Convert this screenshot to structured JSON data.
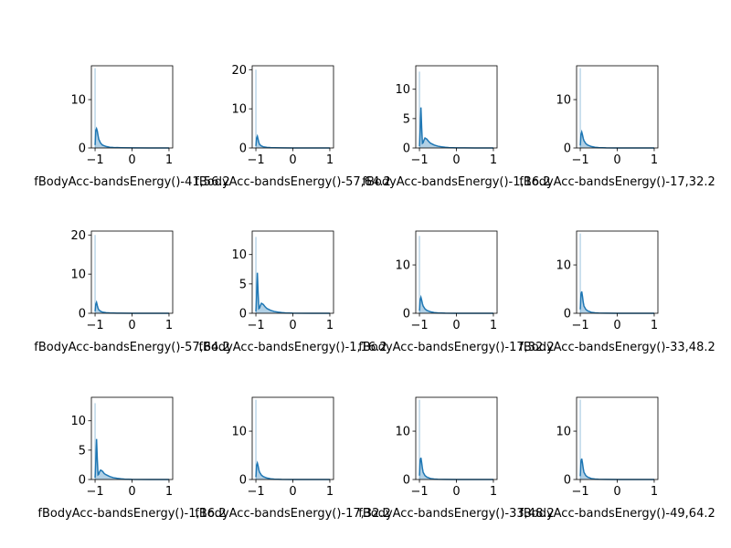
{
  "colors": {
    "line": "#1f77b4",
    "fill": "#1f77b4",
    "axis": "#000000",
    "background": "#ffffff"
  },
  "chart_data": [
    {
      "type": "area",
      "xlabel": "fBodyAcc-bandsEnergy()-41,56.2",
      "xlim": [
        -1.1,
        1.1
      ],
      "ylim": [
        0,
        17
      ],
      "yticks": [
        0,
        10
      ],
      "xticks": [
        -1,
        0,
        1
      ],
      "x": [
        -1,
        -0.98,
        -0.96,
        -0.94,
        -0.92,
        -0.9,
        -0.85,
        -0.8,
        -0.7,
        -0.6,
        -0.5,
        -0.3,
        0,
        0.5,
        1
      ],
      "y": [
        0.6,
        3.6,
        4.0,
        3.5,
        2.6,
        1.8,
        1.0,
        0.6,
        0.3,
        0.15,
        0.1,
        0.05,
        0.02,
        0.01,
        0
      ],
      "spike": {
        "x": -1,
        "y": 16.5
      }
    },
    {
      "type": "area",
      "xlabel": "fBodyAcc-bandsEnergy()-57,64.2",
      "xlim": [
        -1.1,
        1.1
      ],
      "ylim": [
        0,
        21
      ],
      "yticks": [
        0,
        10,
        20
      ],
      "xticks": [
        -1,
        0,
        1
      ],
      "x": [
        -1,
        -0.98,
        -0.96,
        -0.94,
        -0.92,
        -0.9,
        -0.85,
        -0.8,
        -0.7,
        -0.6,
        -0.5,
        -0.3,
        0,
        0.5,
        1
      ],
      "y": [
        0.5,
        2.5,
        3.0,
        2.2,
        1.4,
        0.9,
        0.5,
        0.3,
        0.15,
        0.08,
        0.05,
        0.02,
        0.01,
        0,
        0
      ],
      "spike": {
        "x": -1,
        "y": 20.0
      }
    },
    {
      "type": "area",
      "xlabel": "fBodyAcc-bandsEnergy()-1,16.2",
      "xlim": [
        -1.1,
        1.1
      ],
      "ylim": [
        0,
        14
      ],
      "yticks": [
        0,
        5,
        10
      ],
      "xticks": [
        -1,
        0,
        1
      ],
      "x": [
        -1,
        -0.98,
        -0.96,
        -0.94,
        -0.92,
        -0.9,
        -0.88,
        -0.85,
        -0.8,
        -0.75,
        -0.7,
        -0.6,
        -0.5,
        -0.4,
        -0.3,
        -0.2,
        0,
        0.5,
        1
      ],
      "y": [
        0.3,
        3.0,
        6.9,
        3.5,
        0.8,
        0.9,
        1.3,
        1.7,
        1.5,
        1.1,
        0.8,
        0.5,
        0.3,
        0.2,
        0.12,
        0.06,
        0.02,
        0,
        0
      ],
      "spike": {
        "x": -1,
        "y": 13.0
      }
    },
    {
      "type": "area",
      "xlabel": "fBodyAcc-bandsEnergy()-17,32.2",
      "xlim": [
        -1.1,
        1.1
      ],
      "ylim": [
        0,
        17
      ],
      "yticks": [
        0,
        10
      ],
      "xticks": [
        -1,
        0,
        1
      ],
      "x": [
        -1,
        -0.98,
        -0.96,
        -0.94,
        -0.92,
        -0.9,
        -0.85,
        -0.8,
        -0.7,
        -0.6,
        -0.5,
        -0.3,
        0,
        0.5,
        1
      ],
      "y": [
        0.5,
        2.8,
        3.3,
        2.7,
        2.0,
        1.5,
        0.9,
        0.6,
        0.3,
        0.15,
        0.08,
        0.03,
        0.01,
        0,
        0
      ],
      "spike": {
        "x": -1,
        "y": 16.5
      }
    },
    {
      "type": "area",
      "xlabel": "fBodyAcc-bandsEnergy()-57,64.2",
      "xlim": [
        -1.1,
        1.1
      ],
      "ylim": [
        0,
        21
      ],
      "yticks": [
        0,
        10,
        20
      ],
      "xticks": [
        -1,
        0,
        1
      ],
      "x": [
        -1,
        -0.98,
        -0.96,
        -0.94,
        -0.92,
        -0.9,
        -0.85,
        -0.8,
        -0.7,
        -0.6,
        -0.5,
        -0.3,
        0,
        0.5,
        1
      ],
      "y": [
        0.5,
        2.3,
        2.8,
        2.0,
        1.3,
        0.9,
        0.5,
        0.3,
        0.15,
        0.08,
        0.05,
        0.02,
        0.01,
        0,
        0
      ],
      "spike": {
        "x": -1,
        "y": 20.0
      }
    },
    {
      "type": "area",
      "xlabel": "fBodyAcc-bandsEnergy()-1,16.2",
      "xlim": [
        -1.1,
        1.1
      ],
      "ylim": [
        0,
        14
      ],
      "yticks": [
        0,
        5,
        10
      ],
      "xticks": [
        -1,
        0,
        1
      ],
      "x": [
        -1,
        -0.98,
        -0.96,
        -0.94,
        -0.92,
        -0.9,
        -0.88,
        -0.85,
        -0.8,
        -0.75,
        -0.7,
        -0.6,
        -0.5,
        -0.4,
        -0.3,
        -0.2,
        0,
        0.5,
        1
      ],
      "y": [
        0.3,
        3.0,
        6.9,
        3.5,
        0.8,
        0.9,
        1.3,
        1.7,
        1.5,
        1.1,
        0.8,
        0.5,
        0.3,
        0.2,
        0.12,
        0.06,
        0.02,
        0,
        0
      ],
      "spike": {
        "x": -1,
        "y": 13.0
      }
    },
    {
      "type": "area",
      "xlabel": "fBodyAcc-bandsEnergy()-17,32.2",
      "xlim": [
        -1.1,
        1.1
      ],
      "ylim": [
        0,
        17
      ],
      "yticks": [
        0,
        10
      ],
      "xticks": [
        -1,
        0,
        1
      ],
      "x": [
        -1,
        -0.98,
        -0.96,
        -0.94,
        -0.92,
        -0.9,
        -0.85,
        -0.8,
        -0.7,
        -0.6,
        -0.5,
        -0.3,
        0,
        0.5,
        1
      ],
      "y": [
        0.5,
        2.8,
        3.3,
        2.7,
        2.0,
        1.5,
        0.9,
        0.6,
        0.3,
        0.15,
        0.08,
        0.03,
        0.01,
        0,
        0
      ],
      "spike": {
        "x": -1,
        "y": 16.0
      }
    },
    {
      "type": "area",
      "xlabel": "fBodyAcc-bandsEnergy()-33,48.2",
      "xlim": [
        -1.1,
        1.1
      ],
      "ylim": [
        0,
        17
      ],
      "yticks": [
        0,
        10
      ],
      "xticks": [
        -1,
        0,
        1
      ],
      "x": [
        -1,
        -0.98,
        -0.96,
        -0.94,
        -0.92,
        -0.9,
        -0.85,
        -0.8,
        -0.7,
        -0.6,
        -0.5,
        -0.3,
        0,
        0.5,
        1
      ],
      "y": [
        0.8,
        4.0,
        4.5,
        3.5,
        2.3,
        1.5,
        0.8,
        0.5,
        0.2,
        0.1,
        0.05,
        0.02,
        0.01,
        0,
        0
      ],
      "spike": {
        "x": -1,
        "y": 16.5
      }
    },
    {
      "type": "area",
      "xlabel": "fBodyAcc-bandsEnergy()-1,16.2",
      "xlim": [
        -1.1,
        1.1
      ],
      "ylim": [
        0,
        14
      ],
      "yticks": [
        0,
        5,
        10
      ],
      "xticks": [
        -1,
        0,
        1
      ],
      "x": [
        -1,
        -0.98,
        -0.96,
        -0.94,
        -0.92,
        -0.9,
        -0.88,
        -0.85,
        -0.8,
        -0.75,
        -0.7,
        -0.6,
        -0.5,
        -0.4,
        -0.3,
        -0.2,
        0,
        0.5,
        1
      ],
      "y": [
        0.3,
        3.0,
        6.9,
        3.5,
        0.8,
        0.9,
        1.3,
        1.6,
        1.4,
        1.0,
        0.8,
        0.5,
        0.3,
        0.2,
        0.12,
        0.06,
        0.02,
        0,
        0
      ],
      "spike": {
        "x": -1,
        "y": 13.0
      }
    },
    {
      "type": "area",
      "xlabel": "fBodyAcc-bandsEnergy()-17,32.2",
      "xlim": [
        -1.1,
        1.1
      ],
      "ylim": [
        0,
        17
      ],
      "yticks": [
        0,
        10
      ],
      "xticks": [
        -1,
        0,
        1
      ],
      "x": [
        -1,
        -0.98,
        -0.96,
        -0.94,
        -0.92,
        -0.9,
        -0.85,
        -0.8,
        -0.7,
        -0.6,
        -0.5,
        -0.3,
        0,
        0.5,
        1
      ],
      "y": [
        0.5,
        2.9,
        3.4,
        2.8,
        2.0,
        1.5,
        0.9,
        0.6,
        0.3,
        0.15,
        0.08,
        0.03,
        0.01,
        0,
        0
      ],
      "spike": {
        "x": -1,
        "y": 16.5
      }
    },
    {
      "type": "area",
      "xlabel": "fBodyAcc-bandsEnergy()-33,48.2",
      "xlim": [
        -1.1,
        1.1
      ],
      "ylim": [
        0,
        17
      ],
      "yticks": [
        0,
        10
      ],
      "xticks": [
        -1,
        0,
        1
      ],
      "x": [
        -1,
        -0.98,
        -0.96,
        -0.94,
        -0.92,
        -0.9,
        -0.85,
        -0.8,
        -0.7,
        -0.6,
        -0.5,
        -0.3,
        0,
        0.5,
        1
      ],
      "y": [
        0.8,
        4.0,
        4.5,
        3.5,
        2.3,
        1.5,
        0.8,
        0.5,
        0.2,
        0.1,
        0.05,
        0.02,
        0.01,
        0,
        0
      ],
      "spike": {
        "x": -1,
        "y": 16.5
      }
    },
    {
      "type": "area",
      "xlabel": "fBodyAcc-bandsEnergy()-49,64.2",
      "xlim": [
        -1.1,
        1.1
      ],
      "ylim": [
        0,
        17
      ],
      "yticks": [
        0,
        10
      ],
      "xticks": [
        -1,
        0,
        1
      ],
      "x": [
        -1,
        -0.98,
        -0.96,
        -0.94,
        -0.92,
        -0.9,
        -0.85,
        -0.8,
        -0.7,
        -0.6,
        -0.5,
        -0.3,
        0,
        0.5,
        1
      ],
      "y": [
        0.7,
        3.8,
        4.3,
        3.4,
        2.3,
        1.5,
        0.8,
        0.5,
        0.2,
        0.1,
        0.05,
        0.02,
        0.01,
        0,
        0
      ],
      "spike": {
        "x": -1,
        "y": 16.5
      }
    }
  ]
}
